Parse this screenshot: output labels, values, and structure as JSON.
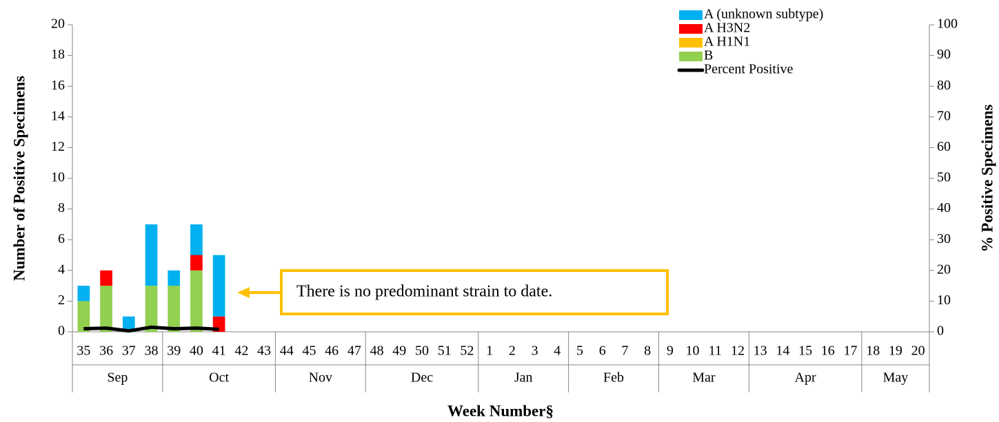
{
  "chart_data": {
    "type": "bar",
    "stacked": true,
    "xlabel": "Week Number§",
    "ylabel": "Number of Positive Specimens",
    "y2label": "% Positive Specimens",
    "annotation": "There is no predominant strain to date.",
    "month_groups": [
      {
        "label": "Sep",
        "categories": [
          "35",
          "36",
          "37",
          "38"
        ]
      },
      {
        "label": "Oct",
        "categories": [
          "39",
          "40",
          "41",
          "42",
          "43"
        ]
      },
      {
        "label": "Nov",
        "categories": [
          "44",
          "45",
          "46",
          "47"
        ]
      },
      {
        "label": "Dec",
        "categories": [
          "48",
          "49",
          "50",
          "51",
          "52"
        ]
      },
      {
        "label": "Jan",
        "categories": [
          "1",
          "2",
          "3",
          "4"
        ]
      },
      {
        "label": "Feb",
        "categories": [
          "5",
          "6",
          "7",
          "8"
        ]
      },
      {
        "label": "Mar",
        "categories": [
          "9",
          "10",
          "11",
          "12"
        ]
      },
      {
        "label": "Apr",
        "categories": [
          "13",
          "14",
          "15",
          "16",
          "17"
        ]
      },
      {
        "label": "May",
        "categories": [
          "18",
          "19",
          "20"
        ]
      }
    ],
    "series": [
      {
        "name": "A (unknown subtype)",
        "color": "#00b0f0",
        "values": [
          1,
          0,
          1,
          4,
          1,
          2,
          4,
          null,
          null,
          null,
          null,
          null,
          null,
          null,
          null,
          null,
          null,
          null,
          null,
          null,
          null,
          null,
          null,
          null,
          null,
          null,
          null,
          null,
          null,
          null,
          null,
          null,
          null,
          null,
          null,
          null,
          null,
          null
        ]
      },
      {
        "name": "A H3N2",
        "color": "#ff0000",
        "values": [
          0,
          1,
          0,
          0,
          0,
          1,
          1,
          null,
          null,
          null,
          null,
          null,
          null,
          null,
          null,
          null,
          null,
          null,
          null,
          null,
          null,
          null,
          null,
          null,
          null,
          null,
          null,
          null,
          null,
          null,
          null,
          null,
          null,
          null,
          null,
          null,
          null,
          null
        ]
      },
      {
        "name": "A H1N1",
        "color": "#ffc000",
        "values": [
          0,
          0,
          0,
          0,
          0,
          0,
          0,
          null,
          null,
          null,
          null,
          null,
          null,
          null,
          null,
          null,
          null,
          null,
          null,
          null,
          null,
          null,
          null,
          null,
          null,
          null,
          null,
          null,
          null,
          null,
          null,
          null,
          null,
          null,
          null,
          null,
          null,
          null
        ]
      },
      {
        "name": "B",
        "color": "#92d050",
        "values": [
          2,
          3,
          0,
          3,
          3,
          4,
          0,
          null,
          null,
          null,
          null,
          null,
          null,
          null,
          null,
          null,
          null,
          null,
          null,
          null,
          null,
          null,
          null,
          null,
          null,
          null,
          null,
          null,
          null,
          null,
          null,
          null,
          null,
          null,
          null,
          null,
          null,
          null
        ]
      },
      {
        "name": "Percent Positive",
        "type": "line",
        "axis": "y2",
        "color": "#000000",
        "values": [
          1,
          1.2,
          0.3,
          1.5,
          1,
          1.2,
          0.8,
          null,
          null,
          null,
          null,
          null,
          null,
          null,
          null,
          null,
          null,
          null,
          null,
          null,
          null,
          null,
          null,
          null,
          null,
          null,
          null,
          null,
          null,
          null,
          null,
          null,
          null,
          null,
          null,
          null,
          null,
          null
        ]
      }
    ],
    "ylim": [
      0,
      20
    ],
    "yticks": [
      0,
      2,
      4,
      6,
      8,
      10,
      12,
      14,
      16,
      18,
      20
    ],
    "y2lim": [
      0,
      100
    ],
    "y2ticks": [
      0,
      10,
      20,
      30,
      40,
      50,
      60,
      70,
      80,
      90,
      100
    ],
    "legend": "top-right"
  }
}
